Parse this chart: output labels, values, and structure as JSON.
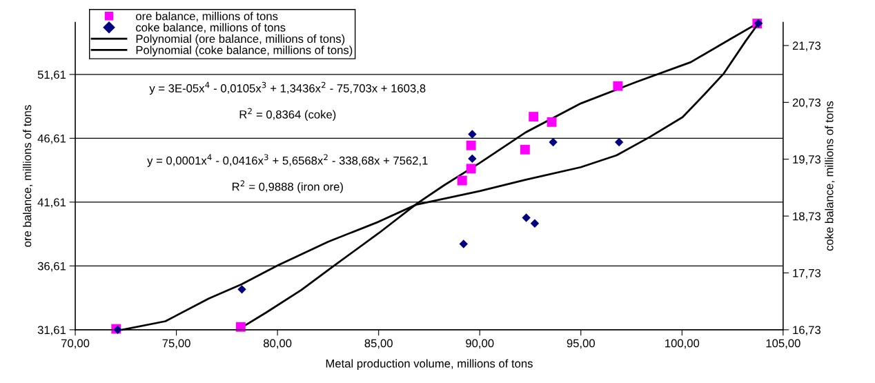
{
  "chart_data": {
    "type": "scatter",
    "xlabel": "Metal production volume, millions of tons",
    "ylabel": "ore balance, millions of tons",
    "y2label": "coke balance, millions of tons",
    "xlim": [
      70,
      105
    ],
    "xticks": [
      {
        "value": 70,
        "label": "70,00"
      },
      {
        "value": 75,
        "label": "75,00"
      },
      {
        "value": 80,
        "label": "80,00"
      },
      {
        "value": 85,
        "label": "85,00"
      },
      {
        "value": 90,
        "label": "90,00"
      },
      {
        "value": 95,
        "label": "95,00"
      },
      {
        "value": 100,
        "label": "100,00"
      },
      {
        "value": 105,
        "label": "105,00"
      }
    ],
    "ylim": [
      31.61,
      55.7
    ],
    "yticks": [
      {
        "value": 31.61,
        "label": "31,61"
      },
      {
        "value": 36.61,
        "label": "36,61"
      },
      {
        "value": 41.61,
        "label": "41,61"
      },
      {
        "value": 46.61,
        "label": "46,61"
      },
      {
        "value": 51.61,
        "label": "51,61"
      }
    ],
    "y2lim": [
      16.73,
      22.14
    ],
    "y2ticks": [
      {
        "value": 16.73,
        "label": "16,73"
      },
      {
        "value": 17.73,
        "label": "17,73"
      },
      {
        "value": 18.73,
        "label": "18,73"
      },
      {
        "value": 19.73,
        "label": "19,73"
      },
      {
        "value": 20.73,
        "label": "20,73"
      },
      {
        "value": 21.73,
        "label": "21,73"
      }
    ],
    "grid": "y",
    "legend": "top left",
    "series": [
      {
        "name": "ore balance, millions of tons",
        "marker": "square",
        "color": "#ff00ff",
        "x": [
          72.02,
          78.18,
          89.13,
          89.57,
          89.57,
          92.24,
          92.66,
          93.56,
          96.83,
          103.72
        ],
        "values": [
          31.68,
          31.83,
          43.3,
          44.23,
          46.05,
          45.72,
          48.3,
          47.88,
          50.7,
          55.6
        ]
      },
      {
        "name": "coke balance, millions of tons",
        "axis": "y2",
        "marker": "diamond",
        "color": "#000080",
        "x": [
          72.1,
          78.24,
          89.2,
          89.63,
          89.63,
          92.3,
          92.72,
          93.63,
          96.89,
          103.78
        ],
        "values": [
          16.73,
          17.44,
          18.24,
          19.74,
          20.17,
          18.7,
          18.6,
          20.03,
          20.03,
          22.12
        ]
      },
      {
        "name": "Polynomial (ore balance, millions of tons)",
        "type": "line",
        "marker": "none",
        "color": "#000000",
        "x": [
          78.04,
          79.42,
          81.17,
          82.78,
          85.0,
          86.9,
          88.21,
          90.0,
          92.28,
          95.0,
          97.72,
          100.43,
          102.47,
          103.72
        ],
        "values": [
          31.61,
          32.94,
          34.72,
          36.61,
          39.17,
          41.5,
          42.9,
          44.68,
          47.08,
          49.34,
          51.01,
          52.57,
          54.45,
          55.6
        ]
      },
      {
        "name": "Polynomial (coke balance, millions of tons)",
        "type": "line",
        "axis": "y2",
        "marker": "none",
        "color": "#000000",
        "x": [
          72.32,
          74.46,
          76.61,
          78.22,
          80.0,
          82.51,
          85.0,
          86.85,
          90.0,
          92.28,
          95.0,
          96.77,
          98.4,
          100.03,
          101.11,
          102.07,
          103.15,
          103.78
        ],
        "values": [
          16.73,
          16.88,
          17.28,
          17.53,
          17.86,
          18.28,
          18.63,
          18.93,
          19.17,
          19.37,
          19.59,
          19.8,
          20.12,
          20.47,
          20.87,
          21.24,
          21.81,
          22.12
        ]
      }
    ],
    "annotations": [
      "y = 3E-05x$^{4}$ - 0,0105x$^{3}$ + 1,3436x$^{2}$ - 75,703x + 1603,8",
      "R$^{2}$ = 0,8364 (coke)",
      "y = 0,0001x$^{4}$ - 0,0416x$^{3}$ + 5,6568x$^{2}$ - 338,68x + 7562,1",
      "R$^{2}$ = 0,9888 (iron ore)"
    ]
  }
}
